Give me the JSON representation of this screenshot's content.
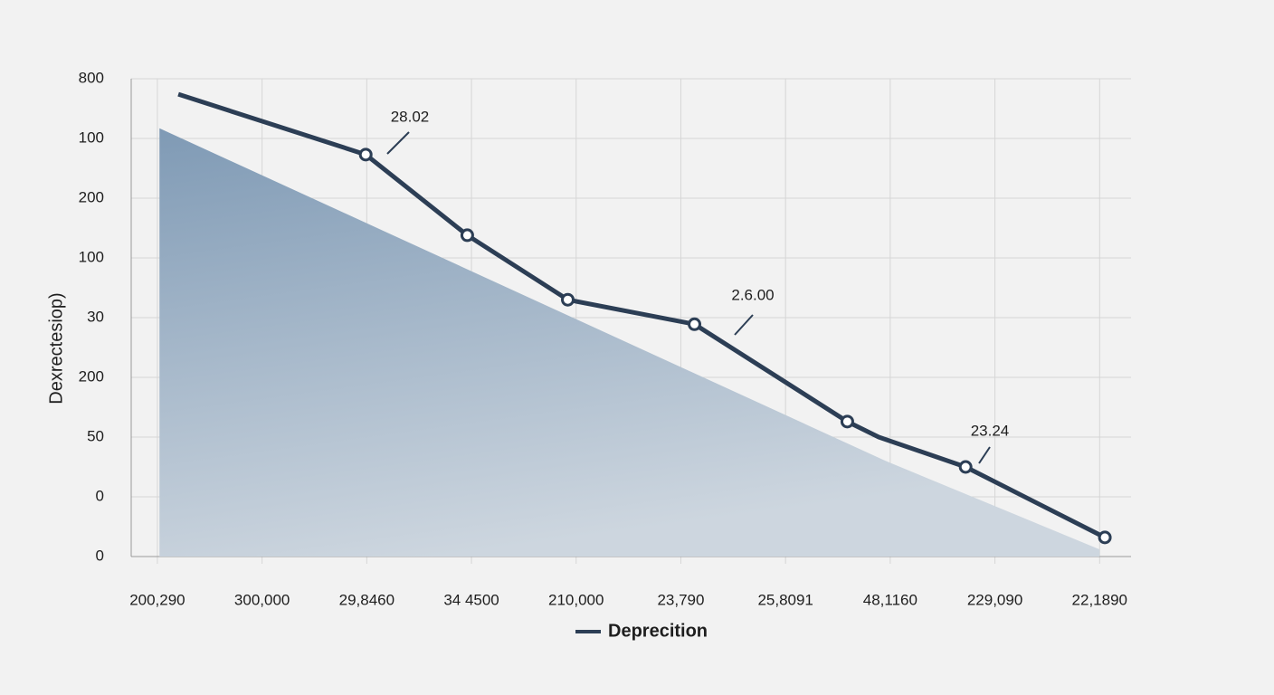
{
  "chart_data": {
    "type": "line",
    "ylabel": "Dexrectesiop)",
    "xlim": [
      -0.25,
      9.3
    ],
    "xticks": [
      {
        "value": 0,
        "label": "200,290"
      },
      {
        "value": 1,
        "label": "300,000"
      },
      {
        "value": 2,
        "label": "29,8460"
      },
      {
        "value": 3,
        "label": "34 4500"
      },
      {
        "value": 4,
        "label": "210,000"
      },
      {
        "value": 5,
        "label": "23,790"
      },
      {
        "value": 6,
        "label": "25,8091"
      },
      {
        "value": 7,
        "label": "48,1160"
      },
      {
        "value": 8,
        "label": "229,090"
      },
      {
        "value": 9,
        "label": "22,1890"
      }
    ],
    "ylim": [
      0,
      8
    ],
    "yticks": [
      {
        "value": 8,
        "label": "800"
      },
      {
        "value": 7,
        "label": "100"
      },
      {
        "value": 6,
        "label": "200"
      },
      {
        "value": 5,
        "label": "100"
      },
      {
        "value": 4,
        "label": "30"
      },
      {
        "value": 3,
        "label": "200"
      },
      {
        "value": 2,
        "label": "50"
      },
      {
        "value": 1,
        "label": "0"
      },
      {
        "value": 0,
        "label": "0"
      }
    ],
    "grid": true,
    "legend": "bottom",
    "series": [
      {
        "name": "Deprecition",
        "color": "#2c3e55",
        "x": [
          0.2,
          1.99,
          2.96,
          3.92,
          5.13,
          6.59,
          6.89,
          7.72,
          9.05
        ],
        "values": [
          7.74,
          6.73,
          5.38,
          4.3,
          3.89,
          2.26,
          2.0,
          1.5,
          0.32
        ],
        "markers": [
          false,
          true,
          true,
          true,
          true,
          true,
          false,
          true,
          true
        ]
      }
    ],
    "area": {
      "color": "#7f9ab5",
      "x": [
        0.02,
        6.97,
        9.0
      ],
      "values": [
        7.17,
        1.59,
        0.12
      ]
    },
    "annotations": [
      "28.02",
      "2.6.00",
      "23.24"
    ]
  }
}
